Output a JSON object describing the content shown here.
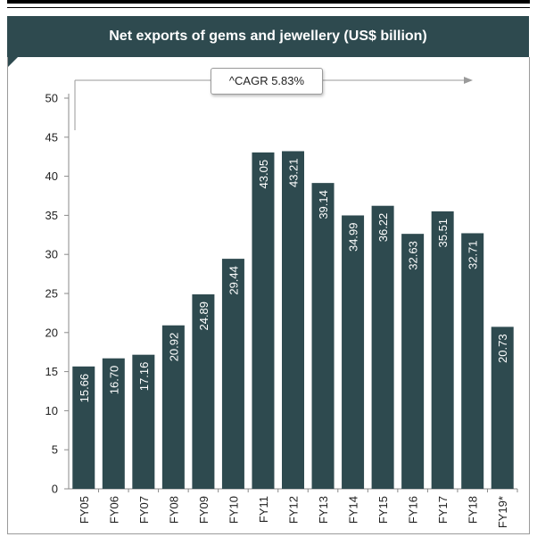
{
  "chart_data": {
    "type": "bar",
    "title": "Net exports of gems and jewellery (US$ billion)",
    "annotation": "^CAGR 5.83%",
    "categories": [
      "FY05",
      "FY06",
      "FY07",
      "FY08",
      "FY09",
      "FY10",
      "FY11",
      "FY12",
      "FY13",
      "FY14",
      "FY15",
      "FY16",
      "FY17",
      "FY18",
      "FY19*"
    ],
    "values": [
      15.66,
      16.7,
      17.16,
      20.92,
      24.89,
      29.44,
      43.05,
      43.21,
      39.14,
      34.99,
      36.22,
      32.63,
      35.51,
      32.71,
      20.73
    ],
    "data_labels": [
      "15.66",
      "16.70",
      "17.16",
      "20.92",
      "24.89",
      "29.44",
      "43.05",
      "43.21",
      "39.14",
      "34.99",
      "36.22",
      "32.63",
      "35.51",
      "32.71",
      "20.73"
    ],
    "ylim": [
      0,
      50
    ],
    "yticks": [
      0,
      5,
      10,
      15,
      20,
      25,
      30,
      35,
      40,
      45,
      50
    ],
    "xlabel": "",
    "ylabel": "",
    "grid": false,
    "legend": "none",
    "bar_color": "#2e4a4f",
    "title_bar_color": "#2e4a4f"
  }
}
